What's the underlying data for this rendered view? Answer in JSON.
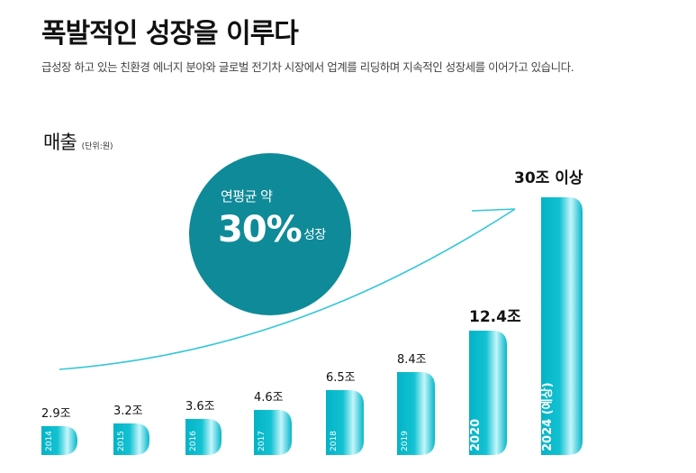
{
  "header": {
    "title": "폭발적인 성장을 이루다",
    "subtitle": "급성장 하고 있는 친환경 에너지 분야와 글로벌 전기차 시장에서 업계를 리딩하며 지속적인 성장세를 이어가고 있습니다."
  },
  "chart_label": {
    "main": "매출",
    "unit": "(단위:원)"
  },
  "badge": {
    "line1": "연평균 약",
    "value": "30%",
    "suffix": "성장"
  },
  "colors": {
    "accent": "#0f8a98",
    "bar_light": "#c4f6fb",
    "bar_dark": "#03b3c6",
    "curve": "#33c7d8"
  },
  "chart_data": {
    "type": "bar",
    "title": "매출",
    "ylabel": "(단위:원)",
    "categories": [
      "2014",
      "2015",
      "2016",
      "2017",
      "2018",
      "2019",
      "2020",
      "2024 (예상)"
    ],
    "values": [
      2.9,
      3.2,
      3.6,
      4.6,
      6.5,
      8.4,
      12.4,
      30
    ],
    "value_labels": [
      "2.9조",
      "3.2조",
      "3.6조",
      "4.6조",
      "6.5조",
      "8.4조",
      "12.4조",
      "30조 이상"
    ],
    "grid": false,
    "legend": "none"
  }
}
